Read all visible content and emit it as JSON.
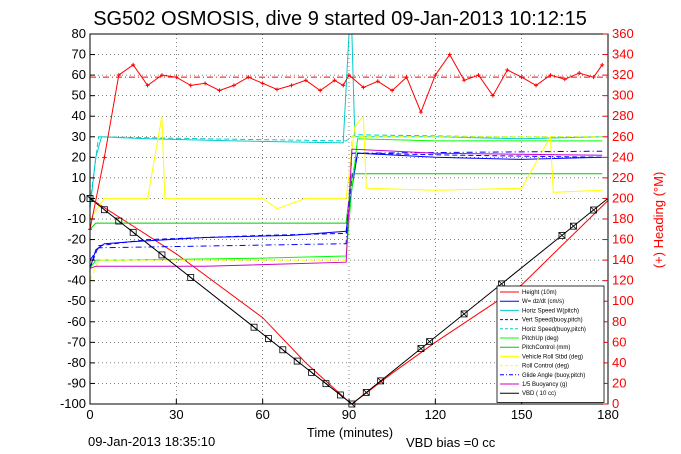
{
  "title": "SG502 OSMOSIS, dive 9 started 09-Jan-2013 10:12:15",
  "footer_date": "09-Jan-2013 18:35:10",
  "footer_vbd": "VBD bias =0 cc",
  "chart_data": {
    "type": "line",
    "title": "SG502 OSMOSIS, dive 9 started 09-Jan-2013 10:12:15",
    "xlabel": "Time (minutes)",
    "ylabel_right": "(+) Heading (°M)",
    "xlim": [
      0,
      180
    ],
    "ylim_left": [
      -100,
      80
    ],
    "ylim_right": [
      0,
      360
    ],
    "x_ticks": [
      "0",
      "30",
      "60",
      "90",
      "120",
      "150",
      "180"
    ],
    "y_ticks_left": [
      "80",
      "70",
      "60",
      "50",
      "40",
      "30",
      "20",
      "10",
      "0",
      "-10",
      "-20",
      "-30",
      "-40",
      "-50",
      "-60",
      "-70",
      "-80",
      "-90",
      "-100"
    ],
    "y_ticks_right": [
      "360",
      "340",
      "320",
      "300",
      "280",
      "260",
      "240",
      "220",
      "200",
      "180",
      "160",
      "140",
      "120",
      "100",
      "80",
      "60",
      "40",
      "20",
      "0"
    ],
    "grid": true,
    "legend_position": "bottom-right",
    "series": [
      {
        "name": "Height (10m)",
        "color": "#ff0000",
        "style": "solid",
        "points": [
          [
            0,
            0
          ],
          [
            30,
            -27
          ],
          [
            60,
            -58
          ],
          [
            75,
            -80
          ],
          [
            90,
            -99
          ],
          [
            91,
            -100
          ],
          [
            105,
            -85
          ],
          [
            120,
            -70
          ],
          [
            150,
            -42
          ],
          [
            180,
            -1
          ]
        ]
      },
      {
        "name": "W= dz/dt (cm/s)",
        "color": "#0000ff",
        "style": "solid",
        "points": [
          [
            0,
            -34
          ],
          [
            2,
            -25
          ],
          [
            5,
            -22
          ],
          [
            15,
            -21
          ],
          [
            40,
            -19
          ],
          [
            70,
            -18
          ],
          [
            89,
            -16
          ],
          [
            91,
            5
          ],
          [
            93,
            22
          ],
          [
            120,
            20
          ],
          [
            150,
            19
          ],
          [
            178,
            20
          ]
        ]
      },
      {
        "name": "Horiz Speed W(pitch)",
        "color": "#00cccc",
        "style": "solid",
        "points": [
          [
            0,
            -5
          ],
          [
            2,
            20
          ],
          [
            4,
            30
          ],
          [
            20,
            29
          ],
          [
            50,
            28
          ],
          [
            88,
            27
          ],
          [
            90,
            80
          ],
          [
            91,
            80
          ],
          [
            92,
            30
          ],
          [
            120,
            30
          ],
          [
            150,
            29
          ],
          [
            178,
            30
          ]
        ]
      },
      {
        "name": "Vert Speed(buoy,pitch)",
        "color": "#0000ff",
        "style": "dashed",
        "points": [
          [
            0,
            -34
          ],
          [
            3,
            -23
          ],
          [
            20,
            -20
          ],
          [
            60,
            -18
          ],
          [
            89,
            -17
          ],
          [
            91,
            10
          ],
          [
            93,
            22
          ],
          [
            130,
            21
          ],
          [
            178,
            20
          ]
        ]
      },
      {
        "name": "Horiz Speed(buoy,pitch)",
        "color": "#00cccc",
        "style": "dashed",
        "points": [
          [
            0,
            -2
          ],
          [
            3,
            30
          ],
          [
            40,
            29
          ],
          [
            89,
            28
          ],
          [
            92,
            31
          ],
          [
            140,
            30
          ],
          [
            178,
            30
          ]
        ]
      },
      {
        "name": "PitchUp (deg)",
        "color": "#00ff00",
        "style": "solid",
        "points": [
          [
            0,
            -34
          ],
          [
            2,
            -30
          ],
          [
            10,
            -30
          ],
          [
            60,
            -29
          ],
          [
            89,
            -28
          ],
          [
            91,
            5
          ],
          [
            93,
            29
          ],
          [
            120,
            28
          ],
          [
            178,
            28
          ]
        ]
      },
      {
        "name": "PitchControl (mm)",
        "color": "#00cc00",
        "style": "solid",
        "points": [
          [
            0,
            -15
          ],
          [
            2,
            -12
          ],
          [
            89,
            -12
          ],
          [
            91,
            12
          ],
          [
            178,
            12
          ]
        ]
      },
      {
        "name": "Vehicle Roll Stbd (deg)",
        "color": "#ffff00",
        "style": "solid",
        "points": [
          [
            0,
            -10
          ],
          [
            5,
            0
          ],
          [
            20,
            0
          ],
          [
            25,
            40
          ],
          [
            26,
            0
          ],
          [
            60,
            0
          ],
          [
            65,
            -5
          ],
          [
            75,
            0
          ],
          [
            89,
            0
          ],
          [
            92,
            35
          ],
          [
            95,
            40
          ],
          [
            96,
            5
          ],
          [
            120,
            4
          ],
          [
            150,
            5
          ],
          [
            160,
            30
          ],
          [
            161,
            3
          ],
          [
            178,
            4
          ]
        ]
      },
      {
        "name": "Roll Control (deg)",
        "color": "#ffff00",
        "style": "dashed",
        "points": [
          [
            0,
            -40
          ],
          [
            3,
            -30
          ],
          [
            89,
            -30
          ],
          [
            91,
            30
          ],
          [
            178,
            30
          ]
        ]
      },
      {
        "name": "Glide Angle (buoy,pitch)",
        "color": "#0000ff",
        "style": "dashdot",
        "points": [
          [
            0,
            -30
          ],
          [
            3,
            -24
          ],
          [
            89,
            -22
          ],
          [
            91,
            22
          ],
          [
            178,
            23
          ]
        ]
      },
      {
        "name": "1/5 Buoyancy (g)",
        "color": "#cc00cc",
        "style": "solid",
        "points": [
          [
            0,
            -34
          ],
          [
            2,
            -33
          ],
          [
            40,
            -33
          ],
          [
            89,
            -31
          ],
          [
            91,
            24
          ],
          [
            120,
            22
          ],
          [
            178,
            21
          ]
        ]
      },
      {
        "name": "VBD ( 10 cc)",
        "color": "#000000",
        "style": "solid",
        "points": [
          [
            0,
            0
          ],
          [
            91,
            -100
          ],
          [
            180,
            0
          ]
        ]
      }
    ],
    "heading_series": {
      "name": "(+) Heading (°M)",
      "color": "#ff0000",
      "axis": "right",
      "points": [
        [
          0,
          170
        ],
        [
          5,
          240
        ],
        [
          10,
          320
        ],
        [
          15,
          330
        ],
        [
          20,
          310
        ],
        [
          25,
          320
        ],
        [
          30,
          318
        ],
        [
          35,
          310
        ],
        [
          40,
          312
        ],
        [
          45,
          305
        ],
        [
          50,
          310
        ],
        [
          55,
          318
        ],
        [
          60,
          312
        ],
        [
          65,
          306
        ],
        [
          70,
          310
        ],
        [
          75,
          315
        ],
        [
          80,
          305
        ],
        [
          85,
          315
        ],
        [
          88,
          310
        ],
        [
          90,
          320
        ],
        [
          95,
          308
        ],
        [
          100,
          314
        ],
        [
          105,
          305
        ],
        [
          110,
          318
        ],
        [
          115,
          284
        ],
        [
          120,
          320
        ],
        [
          125,
          340
        ],
        [
          130,
          315
        ],
        [
          135,
          320
        ],
        [
          140,
          300
        ],
        [
          145,
          325
        ],
        [
          150,
          318
        ],
        [
          155,
          310
        ],
        [
          160,
          320
        ],
        [
          165,
          316
        ],
        [
          170,
          322
        ],
        [
          175,
          318
        ],
        [
          178,
          330
        ]
      ]
    },
    "reference_lines_right": [
      {
        "value": 318,
        "color": "#ff0000",
        "style": "dashdot"
      }
    ]
  }
}
